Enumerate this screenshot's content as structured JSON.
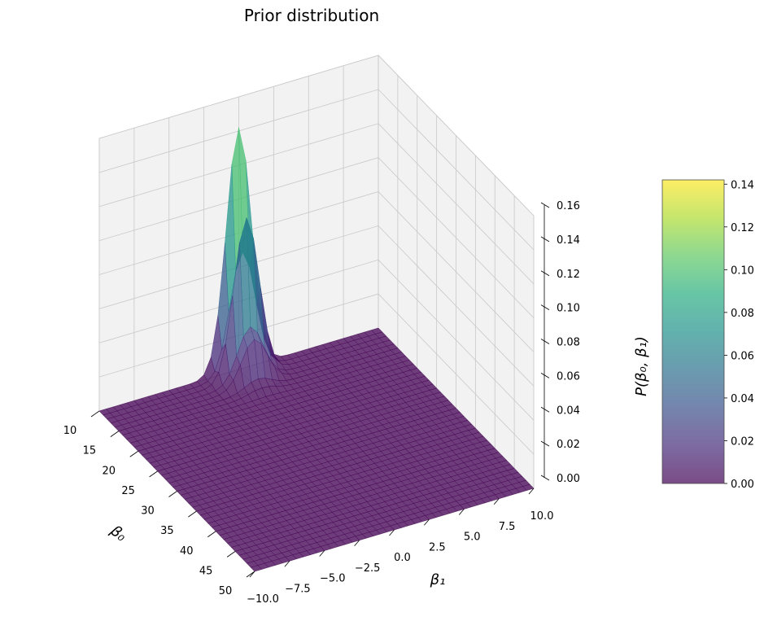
{
  "chart_data": {
    "type": "surface3d",
    "title": "Prior distribution",
    "xlabel": "β₀",
    "ylabel": "β₁",
    "zlabel": "P(β₀, β₁)",
    "x_range": [
      10,
      50
    ],
    "y_range": [
      -10,
      10
    ],
    "z_range": [
      0,
      0.16
    ],
    "x_ticks": [
      "10",
      "15",
      "20",
      "25",
      "30",
      "35",
      "40",
      "45",
      "50"
    ],
    "y_ticks": [
      "−10.0",
      "−7.5",
      "−5.0",
      "−2.5",
      "0.0",
      "2.5",
      "5.0",
      "7.5",
      "10.0"
    ],
    "z_ticks": [
      "0.00",
      "0.02",
      "0.04",
      "0.06",
      "0.08",
      "0.10",
      "0.12",
      "0.14",
      "0.16"
    ],
    "peak": {
      "beta0": 10,
      "beta1": 0,
      "density": 0.142
    },
    "colormap": "viridis",
    "surface_alpha": 0.7,
    "grid": true,
    "colorbar": {
      "min": 0.0,
      "max": 0.142,
      "ticks": [
        "0.00",
        "0.02",
        "0.04",
        "0.06",
        "0.08",
        "0.10",
        "0.12",
        "0.14"
      ],
      "tick_values": [
        0,
        0.02,
        0.04,
        0.06,
        0.08,
        0.1,
        0.12,
        0.14
      ]
    }
  }
}
